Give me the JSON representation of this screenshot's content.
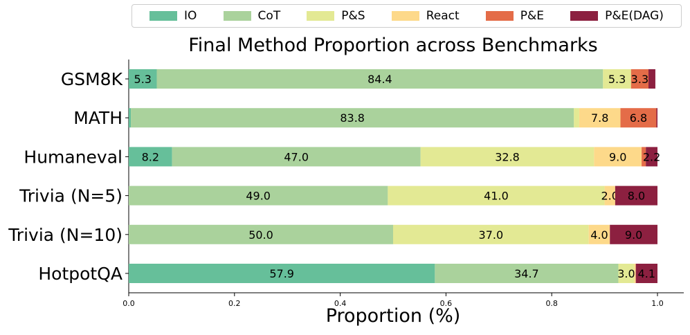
{
  "chart_data": {
    "type": "bar",
    "orientation": "horizontal",
    "stacked": true,
    "title": "Final Method Proportion across Benchmarks",
    "xlabel": "Proportion (%)",
    "ylabel": "",
    "xlim": [
      0,
      1
    ],
    "xticks": [
      "0.0",
      "0.2",
      "0.4",
      "0.6",
      "0.8",
      "1.0"
    ],
    "categories": [
      "GSM8K",
      "MATH",
      "Humaneval",
      "Trivia (N=5)",
      "Trivia (N=10)",
      "HotpotQA"
    ],
    "legend_position": "top",
    "grid": false,
    "series": [
      {
        "name": "IO",
        "color": "#66bf9a",
        "values": [
          0.053,
          0.004,
          0.082,
          0,
          0,
          0.579
        ],
        "labels": [
          "5.3",
          "",
          "8.2",
          "",
          "",
          "57.9"
        ]
      },
      {
        "name": "CoT",
        "color": "#aad29c",
        "values": [
          0.844,
          0.838,
          0.47,
          0.49,
          0.5,
          0.347
        ],
        "labels": [
          "84.4",
          "83.8",
          "47.0",
          "49.0",
          "50.0",
          "34.7"
        ]
      },
      {
        "name": "P&S",
        "color": "#e3e994",
        "values": [
          0.053,
          0.01,
          0.328,
          0.41,
          0.37,
          0.03
        ],
        "labels": [
          "5.3",
          "",
          "32.8",
          "41.0",
          "37.0",
          "3.0"
        ]
      },
      {
        "name": "React",
        "color": "#fdd98a",
        "values": [
          0,
          0.078,
          0.09,
          0.02,
          0.04,
          0.003
        ],
        "labels": [
          "",
          "7.8",
          "9.0",
          "2.0",
          "4.0",
          ""
        ]
      },
      {
        "name": "P&E",
        "color": "#e46c48",
        "values": [
          0.033,
          0.068,
          0.008,
          0,
          0,
          0
        ],
        "labels": [
          "3.3",
          "6.8",
          "",
          "",
          "",
          ""
        ]
      },
      {
        "name": "P&E(DAG)",
        "color": "#8c2040",
        "values": [
          0.013,
          0.002,
          0.022,
          0.08,
          0.09,
          0.041
        ],
        "labels": [
          "",
          "",
          "2.2",
          "8.0",
          "9.0",
          "4.1"
        ]
      }
    ]
  }
}
